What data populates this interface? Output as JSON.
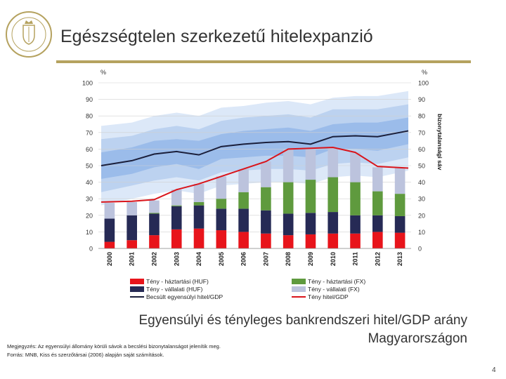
{
  "slide": {
    "title": "Egészségtelen szerkezetű hitelexpanzió",
    "caption_line1": "Egyensúlyi és tényleges bankrendszeri hitel/GDP arány",
    "caption_line2": "Magyarországon",
    "note": "Megjegyzés: Az egyensúlyi állomány körüli sávok a becslési bizonytalanságot jelenítik meg.",
    "source": "Forrás: MNB, Kiss és szerzőtársai (2006) alapján saját számítások.",
    "page_number": "4"
  },
  "colors": {
    "household_huf": "#e8141b",
    "corporate_huf": "#262a55",
    "household_fx": "#5f9a3e",
    "corporate_fx": "#bcc3dd",
    "equilibrium": "#1b1f3b",
    "actual": "#d9141b",
    "band_inner": "#9bbcea",
    "band_mid": "#bcd2f0",
    "band_outer": "#dce8f8",
    "title_rule": "#b5a25f"
  },
  "chart_data": {
    "type": "bar",
    "stacked": true,
    "categories": [
      "2000",
      "2001",
      "2002",
      "2003",
      "2004",
      "2005",
      "2006",
      "2007",
      "2008",
      "2009",
      "2010",
      "2011",
      "2012",
      "2013"
    ],
    "y_unit_left": "%",
    "y_unit_right": "%",
    "ylim": [
      0,
      100
    ],
    "yticks": [
      0,
      10,
      20,
      30,
      40,
      50,
      60,
      70,
      80,
      90,
      100
    ],
    "band_label": "bizonytalansági sáv",
    "series": [
      {
        "name": "Tény - háztartási (HUF)",
        "kind": "bar",
        "color_key": "household_huf",
        "values": [
          4,
          5,
          8,
          11.5,
          12,
          11,
          10,
          9,
          8,
          8.5,
          9,
          9,
          10,
          9.5
        ]
      },
      {
        "name": "Tény - vállalati (HUF)",
        "kind": "bar",
        "color_key": "corporate_huf",
        "values": [
          14,
          15,
          13,
          14,
          14,
          13,
          14,
          14,
          13,
          13,
          13,
          11,
          10,
          10
        ]
      },
      {
        "name": "Tény - háztartási (FX)",
        "kind": "bar",
        "color_key": "household_fx",
        "values": [
          0,
          0,
          0.5,
          0.5,
          2,
          6,
          10,
          14,
          19,
          20,
          21,
          20,
          14.5,
          13.5
        ]
      },
      {
        "name": "Tény - vállalati (FX)",
        "kind": "bar",
        "color_key": "corporate_fx",
        "values": [
          9.5,
          8,
          7.5,
          9.5,
          11,
          13.5,
          14,
          15.5,
          20,
          19,
          18,
          18,
          14.5,
          15.5
        ]
      },
      {
        "name": "Becsült egyensúlyi hitel/GDP",
        "kind": "line",
        "color_key": "equilibrium",
        "values": [
          50,
          53,
          57,
          58.5,
          56.5,
          61.5,
          63,
          64,
          64.5,
          63,
          67.5,
          68,
          67.5,
          71
        ]
      },
      {
        "name": "Tény hitel/GDP",
        "kind": "line",
        "color_key": "actual",
        "values": [
          28,
          28.5,
          29.5,
          35.5,
          39,
          43.5,
          48,
          52.5,
          60,
          60.5,
          61,
          58,
          49.5,
          48.5
        ]
      }
    ],
    "bands": [
      {
        "level": "outer",
        "color_key": "band_outer",
        "lower": [
          26,
          30,
          33,
          35,
          33,
          38,
          39,
          40,
          40,
          39,
          43,
          44,
          43,
          47
        ],
        "upper": [
          74,
          76,
          80,
          82,
          80,
          85,
          86,
          88,
          89,
          87,
          91,
          92,
          92,
          95
        ]
      },
      {
        "level": "middle",
        "color_key": "band_mid",
        "lower": [
          34,
          38,
          41,
          43,
          41,
          46,
          47,
          48,
          48,
          47,
          51,
          52,
          51,
          55
        ],
        "upper": [
          66,
          68,
          72,
          74,
          72,
          77,
          79,
          80,
          81,
          79,
          84,
          84,
          84,
          87
        ]
      },
      {
        "level": "inner",
        "color_key": "band_inner",
        "lower": [
          42,
          45,
          49,
          51,
          48,
          54,
          55,
          56,
          56,
          55,
          60,
          60,
          59,
          63
        ],
        "upper": [
          58,
          61,
          65,
          66,
          65,
          69,
          71,
          72,
          73,
          71,
          75,
          76,
          76,
          79
        ]
      }
    ],
    "legend": [
      {
        "label": "Tény - háztartási (HUF)",
        "swatch": "box",
        "color_key": "household_huf"
      },
      {
        "label": "Tény - háztartási (FX)",
        "swatch": "box",
        "color_key": "household_fx"
      },
      {
        "label": "Tény - vállalati (HUF)",
        "swatch": "box",
        "color_key": "corporate_huf"
      },
      {
        "label": "Tény - vállalati (FX)",
        "swatch": "box",
        "color_key": "corporate_fx"
      },
      {
        "label": "Becsült egyensúlyi hitel/GDP",
        "swatch": "line",
        "color_key": "equilibrium"
      },
      {
        "label": "Tény hitel/GDP",
        "swatch": "line",
        "color_key": "actual"
      }
    ]
  }
}
